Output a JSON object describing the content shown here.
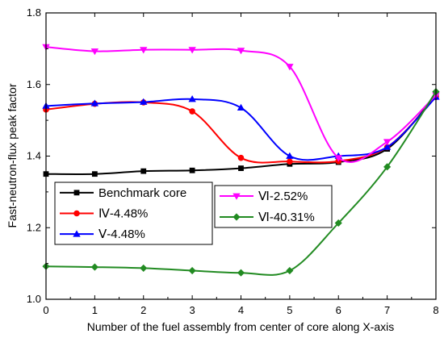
{
  "chart_data": {
    "type": "line",
    "title": "",
    "xlabel": "Number of the fuel assembly from center of core along X-axis",
    "ylabel": "Fast-neutron-flux peak factor",
    "xlim": [
      0,
      8
    ],
    "ylim": [
      1.0,
      1.8
    ],
    "x_ticks": [
      "0",
      "1",
      "2",
      "3",
      "4",
      "5",
      "6",
      "7",
      "8"
    ],
    "y_ticks": [
      "1.0",
      "1.2",
      "1.4",
      "1.6",
      "1.8"
    ],
    "grid": false,
    "series": [
      {
        "name": "Benchmark core",
        "color": "#000000",
        "marker": "square",
        "x": [
          0,
          1,
          2,
          3,
          4,
          5,
          6,
          7,
          8
        ],
        "y": [
          1.35,
          1.35,
          1.358,
          1.36,
          1.366,
          1.378,
          1.383,
          1.42,
          1.57
        ]
      },
      {
        "name": "Ⅳ-4.48%",
        "color": "#ff0000",
        "marker": "circle",
        "x": [
          0,
          1,
          2,
          3,
          4,
          5,
          6,
          7,
          8
        ],
        "y": [
          1.53,
          1.546,
          1.55,
          1.525,
          1.395,
          1.385,
          1.386,
          1.425,
          1.565
        ]
      },
      {
        "name": "Ⅴ-4.48%",
        "color": "#0000ff",
        "marker": "triangle-up",
        "x": [
          0,
          1,
          2,
          3,
          4,
          5,
          6,
          7,
          8
        ],
        "y": [
          1.54,
          1.547,
          1.551,
          1.559,
          1.535,
          1.4,
          1.4,
          1.425,
          1.565
        ]
      },
      {
        "name": "Ⅵ-2.52%",
        "color": "#ff00ff",
        "marker": "triangle-down",
        "x": [
          0,
          1,
          2,
          3,
          4,
          5,
          6,
          7,
          8
        ],
        "y": [
          1.705,
          1.693,
          1.697,
          1.697,
          1.695,
          1.65,
          1.395,
          1.44,
          1.57
        ]
      },
      {
        "name": "Ⅵ-40.31%",
        "color": "#228b22",
        "marker": "diamond",
        "x": [
          0,
          1,
          2,
          3,
          4,
          5,
          6,
          7,
          8
        ],
        "y": [
          1.092,
          1.09,
          1.087,
          1.08,
          1.074,
          1.08,
          1.213,
          1.37,
          1.58
        ]
      }
    ],
    "legends": [
      {
        "position": "left",
        "entries": [
          0,
          1,
          2
        ]
      },
      {
        "position": "right",
        "entries": [
          3,
          4
        ]
      }
    ]
  }
}
